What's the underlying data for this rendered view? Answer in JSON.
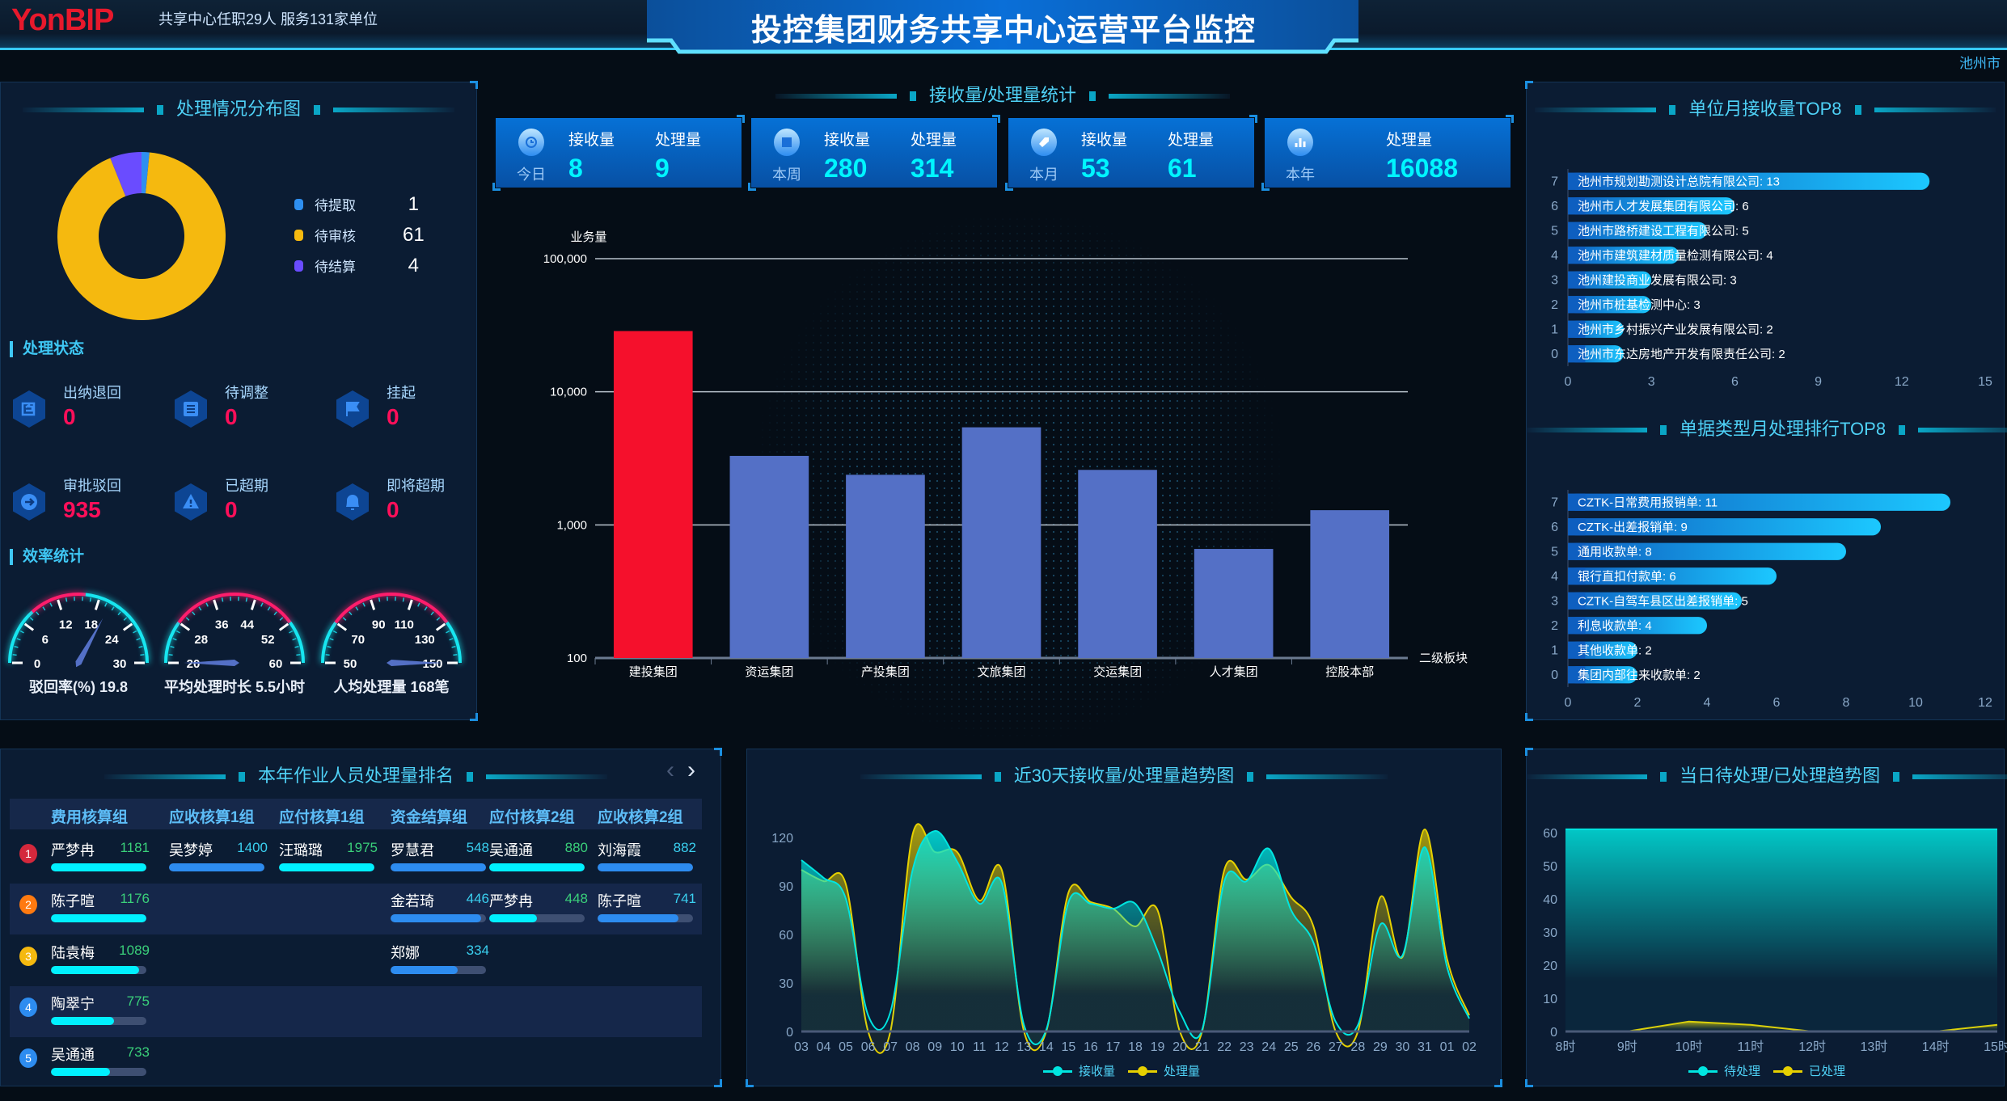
{
  "header": {
    "logo": "YonBIP",
    "subtitle": "共享中心任职29人 服务131家单位",
    "title": "投控集团财务共享中心运营平台监控",
    "city": "池州市"
  },
  "colors": {
    "accent": "#3fc8f5",
    "alert": "#ff0f5a",
    "highlight_bar": "#f5102c",
    "bar": "#5470c6",
    "cyan": "#00f0ff",
    "blue": "#2d8cf0",
    "yellow": "#f5d90f"
  },
  "distribution": {
    "title": "处理情况分布图",
    "items": [
      {
        "label": "待提取",
        "value": 1,
        "color": "#2e8ff0"
      },
      {
        "label": "待审核",
        "value": 61,
        "color": "#f5b90f"
      },
      {
        "label": "待结算",
        "value": 4,
        "color": "#6a4cff"
      }
    ]
  },
  "status": {
    "title": "处理状态",
    "items": [
      {
        "label": "出纳退回",
        "value": "0",
        "icon": "return-icon"
      },
      {
        "label": "待调整",
        "value": "0",
        "icon": "list-icon"
      },
      {
        "label": "挂起",
        "value": "0",
        "icon": "flag-icon"
      },
      {
        "label": "审批驳回",
        "value": "935",
        "icon": "arrow-right-icon"
      },
      {
        "label": "已超期",
        "value": "0",
        "icon": "warning-icon"
      },
      {
        "label": "即将超期",
        "value": "0",
        "icon": "bell-icon"
      }
    ]
  },
  "efficiency": {
    "title": "效率统计",
    "gauges": [
      {
        "label": "驳回率(%) 19.8",
        "value": 19.8,
        "min": 0,
        "max": 30,
        "ticks": [
          "0",
          "6",
          "12",
          "18",
          "24",
          "30"
        ],
        "warn_range": [
          8,
          16
        ]
      },
      {
        "label": "平均处理时长 5.5小时",
        "value": 5.5,
        "min": 20,
        "max": 60,
        "ticks": [
          "20",
          "28",
          "36",
          "44",
          "52",
          "60"
        ],
        "warn_range": [
          28,
          52
        ]
      },
      {
        "label": "人均处理量 168笔",
        "value": 168,
        "min": 50,
        "max": 150,
        "ticks": [
          "50",
          "70",
          "90",
          "110",
          "130",
          "150"
        ],
        "warn_range": [
          70,
          130
        ]
      }
    ]
  },
  "stats": {
    "title": "接收量/处理量统计",
    "cards": [
      {
        "period": "今日",
        "icon": "clock-icon",
        "recv_label": "接收量",
        "recv": "8",
        "proc_label": "处理量",
        "proc": "9"
      },
      {
        "period": "本周",
        "icon": "calendar-icon",
        "recv_label": "接收量",
        "recv": "280",
        "proc_label": "处理量",
        "proc": "314"
      },
      {
        "period": "本月",
        "icon": "tag-icon",
        "recv_label": "接收量",
        "recv": "53",
        "proc_label": "处理量",
        "proc": "61"
      },
      {
        "period": "本年",
        "icon": "bar-chart-icon",
        "proc_label": "处理量",
        "proc": "16088"
      }
    ]
  },
  "chart_data": [
    {
      "id": "segment",
      "type": "bar",
      "ylabel": "业务量",
      "xlabel": "二级板块",
      "yscale": "log",
      "ylim": [
        100,
        100000
      ],
      "yticks": [
        "100",
        "1,000",
        "10,000",
        "100,000"
      ],
      "categories": [
        "建投集团",
        "资运集团",
        "产投集团",
        "文旅集团",
        "交运集团",
        "人才集团",
        "控股本部"
      ],
      "values": [
        28600,
        3300,
        2380,
        5410,
        2590,
        660,
        1290
      ],
      "highlight_index": 0,
      "grid": true
    },
    {
      "id": "unit_top8",
      "type": "bar",
      "orientation": "horizontal",
      "title": "单位月接收量TOP8",
      "xlim": [
        0,
        15
      ],
      "xticks": [
        "0",
        "3",
        "6",
        "9",
        "12",
        "15"
      ],
      "yticks": [
        "7",
        "6",
        "5",
        "4",
        "3",
        "2",
        "1",
        "0"
      ],
      "categories": [
        "池州市规划勘测设计总院有限公司",
        "池州市人才发展集团有限公司",
        "池州市路桥建设工程有限公司",
        "池州市建筑建材质量检测有限公司",
        "池州建投商业发展有限公司",
        "池州市桩基检测中心",
        "池州市乡村振兴产业发展有限公司",
        "池州市东达房地产开发有限责任公司"
      ],
      "values": [
        13,
        6,
        5,
        4,
        3,
        3,
        2,
        2
      ]
    },
    {
      "id": "doctype_top8",
      "type": "bar",
      "orientation": "horizontal",
      "title": "单据类型月处理排行TOP8",
      "xlim": [
        0,
        12
      ],
      "xticks": [
        "0",
        "2",
        "4",
        "6",
        "8",
        "10",
        "12"
      ],
      "yticks": [
        "7",
        "6",
        "5",
        "4",
        "3",
        "2",
        "1",
        "0"
      ],
      "categories": [
        "CZTK-日常费用报销单",
        "CZTK-出差报销单",
        "通用收款单",
        "银行直扣付款单",
        "CZTK-自驾车县区出差报销单",
        "利息收款单",
        "其他收款单",
        "集团内部往来收款单"
      ],
      "values": [
        11,
        9,
        8,
        6,
        5,
        4,
        2,
        2
      ]
    },
    {
      "id": "trend30",
      "type": "area",
      "title": "近30天接收量/处理量趋势图",
      "ylim": [
        0,
        120
      ],
      "yticks": [
        "0",
        "30",
        "60",
        "90",
        "120"
      ],
      "x": [
        "03",
        "04",
        "05",
        "06",
        "07",
        "08",
        "09",
        "10",
        "11",
        "12",
        "13",
        "14",
        "15",
        "16",
        "17",
        "18",
        "19",
        "20",
        "21",
        "22",
        "23",
        "24",
        "25",
        "26",
        "27",
        "28",
        "29",
        "30",
        "31",
        "01",
        "02"
      ],
      "series": [
        {
          "name": "接收量",
          "color": "#00e5e0",
          "values": [
            106,
            95,
            82,
            10,
            12,
            100,
            124,
            105,
            79,
            92,
            4,
            1,
            80,
            79,
            76,
            79,
            50,
            12,
            1,
            93,
            93,
            113,
            75,
            55,
            6,
            4,
            66,
            47,
            114,
            40,
            8
          ]
        },
        {
          "name": "处理量",
          "color": "#e6d000",
          "values": [
            100,
            93,
            91,
            0,
            0,
            122,
            111,
            111,
            81,
            100,
            0,
            0,
            86,
            80,
            76,
            65,
            75,
            0,
            0,
            100,
            94,
            103,
            83,
            65,
            0,
            0,
            83,
            46,
            125,
            45,
            10
          ]
        }
      ],
      "legend": "bottom"
    },
    {
      "id": "today_trend",
      "type": "area",
      "title": "当日待处理/已处理趋势图",
      "ylim": [
        0,
        60
      ],
      "yticks": [
        "0",
        "10",
        "20",
        "30",
        "40",
        "50",
        "60"
      ],
      "x": [
        "8时",
        "9时",
        "10时",
        "11时",
        "12时",
        "13时",
        "14时",
        "15时"
      ],
      "series": [
        {
          "name": "待处理",
          "color": "#00e5e0",
          "values": [
            61,
            61,
            61,
            61,
            61,
            61,
            61,
            61
          ]
        },
        {
          "name": "已处理",
          "color": "#e6d000",
          "values": [
            0,
            0,
            3,
            2,
            0,
            0,
            0,
            2
          ]
        }
      ],
      "legend": "bottom"
    }
  ],
  "ranking": {
    "title": "本年作业人员处理量排名",
    "prev_label": "‹",
    "next_label": "›",
    "columns": [
      {
        "group": "费用核算组",
        "color": "#00f0ff",
        "people": [
          {
            "name": "严梦冉",
            "value": "1181",
            "fill": 1
          },
          {
            "name": "陈子暄",
            "value": "1176",
            "fill": 1
          },
          {
            "name": "陆袁梅",
            "value": "1089",
            "fill": 0.92
          },
          {
            "name": "陶翠宁",
            "value": "775",
            "fill": 0.66
          },
          {
            "name": "吴通通",
            "value": "733",
            "fill": 0.62
          }
        ]
      },
      {
        "group": "应收核算1组",
        "color": "#2d8cf0",
        "people": [
          {
            "name": "吴梦婷",
            "value": "1400",
            "fill": 1
          }
        ]
      },
      {
        "group": "应付核算1组",
        "color": "#00f0ff",
        "people": [
          {
            "name": "汪璐璐",
            "value": "1975",
            "fill": 1
          }
        ]
      },
      {
        "group": "资金结算组",
        "color": "#2d8cf0",
        "people": [
          {
            "name": "罗慧君",
            "value": "548",
            "fill": 1
          },
          {
            "name": "金若琦",
            "value": "446",
            "fill": 0.95
          },
          {
            "name": "郑娜",
            "value": "334",
            "fill": 0.7
          }
        ]
      },
      {
        "group": "应付核算2组",
        "color": "#00f0ff",
        "people": [
          {
            "name": "吴通通",
            "value": "880",
            "fill": 1
          },
          {
            "name": "严梦冉",
            "value": "448",
            "fill": 0.5
          }
        ]
      },
      {
        "group": "应收核算2组",
        "color": "#2d8cf0",
        "people": [
          {
            "name": "刘海霞",
            "value": "882",
            "fill": 1
          },
          {
            "name": "陈子暄",
            "value": "741",
            "fill": 0.85
          }
        ]
      }
    ],
    "ranks": [
      "1",
      "2",
      "3",
      "4",
      "5"
    ]
  }
}
